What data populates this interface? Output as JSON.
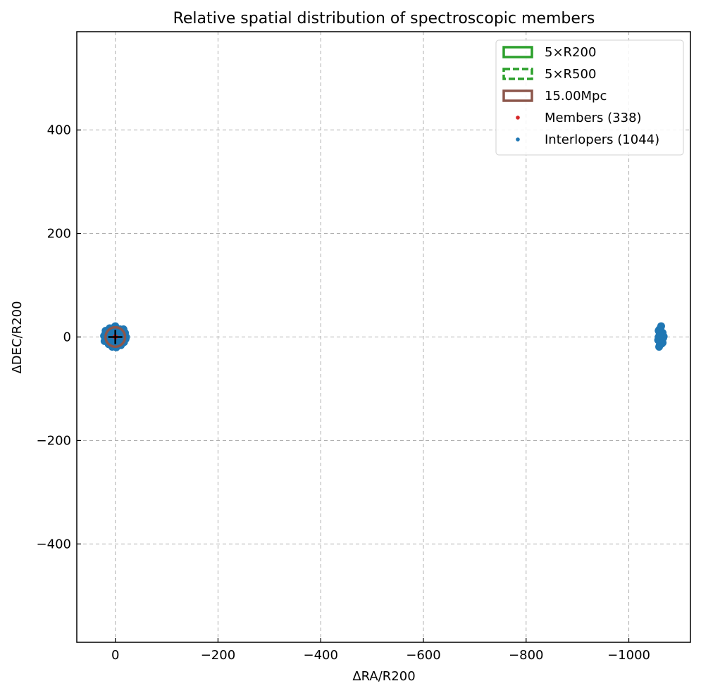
{
  "chart_data": {
    "type": "scatter",
    "title": "Relative spatial distribution of spectroscopic members",
    "xlabel": "ΔRA/R200",
    "ylabel": "ΔDEC/R200",
    "xlim": [
      75,
      -1120
    ],
    "ylim": [
      -590,
      590
    ],
    "x_ticks": [
      0,
      -200,
      -400,
      -600,
      -800,
      -1000
    ],
    "x_tick_labels": [
      "0",
      "−200",
      "−400",
      "−600",
      "−800",
      "−1000"
    ],
    "y_ticks": [
      400,
      200,
      0,
      -200,
      -400
    ],
    "y_tick_labels": [
      "400",
      "200",
      "0",
      "−200",
      "−400"
    ],
    "grid": true,
    "legend_placement": "top-right",
    "legend": [
      {
        "label": "5×R200",
        "kind": "solid-box",
        "color": "#2ca02c"
      },
      {
        "label": "5×R500",
        "kind": "dashed-box",
        "color": "#2ca02c"
      },
      {
        "label": "15.00Mpc",
        "kind": "solid-box",
        "color": "#8c564b"
      },
      {
        "label": "Members (338)",
        "kind": "dot",
        "color": "#d62728"
      },
      {
        "label": "Interlopers (1044)",
        "kind": "dot",
        "color": "#1f77b4"
      }
    ],
    "series": [
      {
        "name": "Members (338)",
        "color": "#d62728",
        "points": [
          [
            0.5,
            0.3
          ],
          [
            -0.8,
            0.6
          ],
          [
            1.2,
            -0.9
          ],
          [
            -1.5,
            -0.4
          ],
          [
            0.2,
            1.4
          ],
          [
            1.8,
            0.9
          ],
          [
            -0.6,
            -1.6
          ],
          [
            2.3,
            -0.2
          ],
          [
            -2.1,
            1.1
          ],
          [
            0.9,
            2.0
          ]
        ]
      },
      {
        "name": "Interlopers (1044)",
        "color": "#1f77b4",
        "points": [
          [
            0,
            0
          ],
          [
            5,
            3
          ],
          [
            -4,
            2
          ],
          [
            3,
            -5
          ],
          [
            -3,
            -4
          ],
          [
            8,
            6
          ],
          [
            -7,
            5
          ],
          [
            6,
            -8
          ],
          [
            -6,
            -7
          ],
          [
            10,
            0
          ],
          [
            -10,
            1
          ],
          [
            0,
            10
          ],
          [
            1,
            -10
          ],
          [
            12,
            4
          ],
          [
            -12,
            -3
          ],
          [
            4,
            12
          ],
          [
            -3,
            -12
          ],
          [
            14,
            -6
          ],
          [
            -14,
            7
          ],
          [
            7,
            14
          ],
          [
            -8,
            -14
          ],
          [
            16,
            2
          ],
          [
            -16,
            -1
          ],
          [
            2,
            16
          ],
          [
            -1,
            -16
          ],
          [
            15,
            9
          ],
          [
            -15,
            -9
          ],
          [
            9,
            -15
          ],
          [
            -9,
            15
          ],
          [
            18,
            -3
          ],
          [
            -18,
            4
          ],
          [
            3,
            18
          ],
          [
            -4,
            -17
          ],
          [
            17,
            10
          ],
          [
            -17,
            -10
          ],
          [
            11,
            17
          ],
          [
            -11,
            -16
          ],
          [
            20,
            5
          ],
          [
            -20,
            -4
          ],
          [
            6,
            -19
          ],
          [
            -19,
            8
          ],
          [
            13,
            -14
          ],
          [
            -13,
            14
          ],
          [
            21,
            -8
          ],
          [
            -21,
            0
          ],
          [
            0,
            21
          ],
          [
            19,
            12
          ],
          [
            -2,
            -20
          ],
          [
            22,
            2
          ],
          [
            -16,
            15
          ],
          [
            2,
            5
          ],
          [
            -5,
            -2
          ],
          [
            9,
            10
          ],
          [
            -9,
            -10
          ],
          [
            11,
            -3
          ],
          [
            -2,
            8
          ],
          [
            -1058,
            0
          ],
          [
            -1060,
            5
          ],
          [
            -1062,
            -4
          ],
          [
            -1061,
            10
          ],
          [
            -1063,
            -9
          ],
          [
            -1059,
            14
          ],
          [
            -1064,
            -13
          ],
          [
            -1065,
            3
          ],
          [
            -1057,
            -6
          ],
          [
            -1066,
            8
          ],
          [
            -1067,
            -2
          ],
          [
            -1062,
            18
          ],
          [
            -1060,
            -16
          ],
          [
            -1064,
            6
          ],
          [
            -1066,
            -11
          ],
          [
            -1058,
            12
          ],
          [
            -1068,
            1
          ],
          [
            -1063,
            21
          ],
          [
            -1059,
            -19
          ],
          [
            -1061,
            2
          ]
        ]
      }
    ],
    "annotations": [
      {
        "label": "15.00Mpc",
        "shape": "circle",
        "center": [
          0,
          0
        ],
        "radius": 19,
        "color": "#8c564b"
      },
      {
        "label": "center",
        "shape": "plus",
        "center": [
          0,
          0
        ],
        "color": "#000000"
      }
    ]
  }
}
